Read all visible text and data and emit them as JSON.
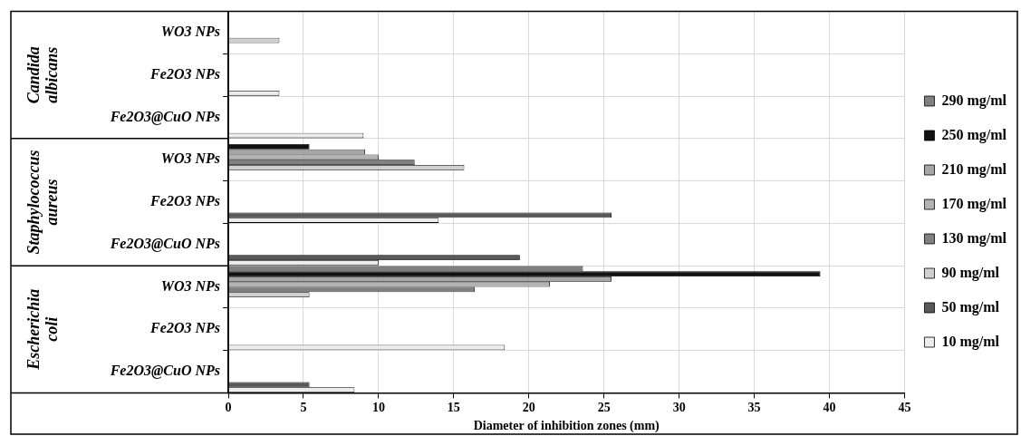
{
  "chart_data": {
    "type": "bar",
    "orientation": "horizontal",
    "xlabel": "Diameter of inhibition zones (mm)",
    "categories": [
      "WO3 NPs",
      "Fe2O3 NPs",
      "Fe2O3@CuO NPs",
      "WO3 NPs",
      "Fe2O3 NPs",
      "Fe2O3@CuO NPs",
      "WO3 NPs",
      "Fe2O3 NPs",
      "Fe2O3@CuO NPs"
    ],
    "series": [
      {
        "name": "290 mg/ml",
        "color": "#7f7f7f",
        "values": [
          null,
          null,
          null,
          null,
          null,
          null,
          23.6,
          null,
          null
        ]
      },
      {
        "name": "250 mg/ml",
        "color": "#111111",
        "values": [
          null,
          null,
          null,
          5.4,
          null,
          null,
          39.4,
          null,
          null
        ]
      },
      {
        "name": "210 mg/ml",
        "color": "#a6a6a6",
        "values": [
          null,
          null,
          null,
          9.1,
          null,
          null,
          25.5,
          null,
          null
        ]
      },
      {
        "name": "170 mg/ml",
        "color": "#b3b3b3",
        "values": [
          null,
          null,
          null,
          10.0,
          null,
          null,
          21.4,
          null,
          null
        ]
      },
      {
        "name": "130 mg/ml",
        "color": "#808080",
        "values": [
          null,
          null,
          null,
          12.4,
          null,
          null,
          16.4,
          null,
          null
        ]
      },
      {
        "name": "90 mg/ml",
        "color": "#d0d0d0",
        "values": [
          3.4,
          null,
          null,
          15.7,
          null,
          null,
          5.4,
          null,
          null
        ]
      },
      {
        "name": "50 mg/ml",
        "color": "#595959",
        "values": [
          null,
          null,
          null,
          null,
          25.5,
          19.4,
          null,
          null,
          5.4
        ]
      },
      {
        "name": "10 mg/ml",
        "color": "#ececec",
        "values": [
          null,
          3.4,
          9.0,
          null,
          14.0,
          10.0,
          null,
          18.4,
          8.4
        ]
      }
    ],
    "annotations": [
      "Candida albicans",
      "Staphylococcus aureus",
      "Escherichia coli"
    ],
    "xlim": [
      0,
      45
    ],
    "xticks": [
      0,
      5,
      10,
      15,
      20,
      25,
      30,
      35,
      40,
      45
    ],
    "grid": true,
    "legend": "right"
  }
}
